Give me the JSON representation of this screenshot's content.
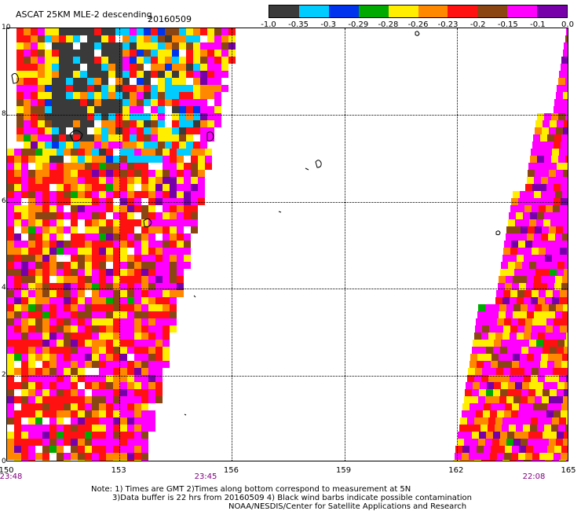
{
  "header": {
    "title": "ASCAT 25KM MLE-2 descending",
    "date": "20160509"
  },
  "colorbar": {
    "colors": [
      "#3a3a3a",
      "#00ccff",
      "#0033ee",
      "#00aa00",
      "#ffee00",
      "#ff8800",
      "#ff1111",
      "#8b4513",
      "#ff00ff",
      "#7700aa"
    ],
    "labels": [
      "-1.0",
      "-0.35",
      "-0.3",
      "-0.29",
      "-0.28",
      "-0.26",
      "-0.23",
      "-0.2",
      "-0.15",
      "-0.1",
      "0.0"
    ]
  },
  "map": {
    "y_ticks": [
      "10",
      "8",
      "6",
      "4",
      "2",
      "0"
    ],
    "x_ticks": [
      "150",
      "153",
      "156",
      "159",
      "162",
      "165"
    ],
    "time_labels": [
      "23:48",
      "23:45",
      "22:08"
    ]
  },
  "notes": {
    "line1": "Note: 1) Times are GMT 2)Times along bottom correspond to measurement at 5N",
    "line2": "3)Data buffer is 22 hrs from 20160509 4) Black wind barbs indicate possible contamination",
    "line3": "NOAA/NESDIS/Center for Satellite Applications and Research"
  }
}
